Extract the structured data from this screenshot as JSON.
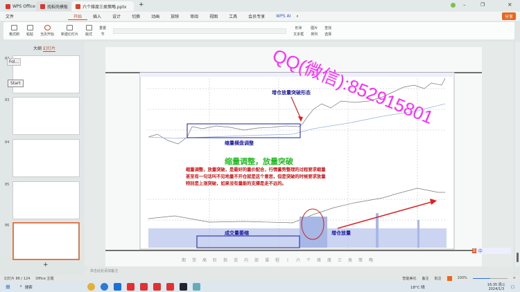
{
  "titlebar": {
    "tabs": [
      "WPS Office",
      "找稻壳模板",
      "六个维度三类策略.pptx"
    ],
    "new_tab": "+"
  },
  "menubar": {
    "file": "文件",
    "items": [
      "开始",
      "插入",
      "设计",
      "切换",
      "动画",
      "放映",
      "审阅",
      "视图",
      "工具",
      "会员专享"
    ],
    "ai": "WPS AI",
    "share": "分享"
  },
  "ribbon": {
    "format_painter": "格式刷",
    "paste": "粘贴",
    "play": "当页开始",
    "new_slide": "新建幻灯片",
    "layout": "版式",
    "reset": "重置",
    "section": "节",
    "shape": "形状",
    "picture": "图片",
    "textbox": "文本框",
    "arrange": "排列",
    "find": "查找",
    "select": "选择"
  },
  "panel": {
    "tab_outline": "大纲",
    "tab_slides": "幻灯片",
    "slides": [
      {
        "num": "82"
      },
      {
        "num": "83"
      },
      {
        "num": "84"
      },
      {
        "num": "85"
      },
      {
        "num": "86",
        "selected": true
      }
    ],
    "tooltip": "Fol...",
    "start": "Start",
    "add": "+"
  },
  "slide": {
    "watermark": "QQ(微信):852915801",
    "annot_breakout": "增仓放量突破形态",
    "annot_consolidation": "缩量横盘调整",
    "heading": "缩量调整，放量突破",
    "body": [
      "缩量调整，放量突破，是最好的量价配合，行情蓄势整理的过程要求缩量",
      "甚至有一句话叫不见地量不开仓就是这个意思，但是突破的时候要求放量",
      "特别是上涨突破，如果没有量能的支撑是走不远的。"
    ],
    "annot_volume_shrink": "成交量萎缩",
    "annot_volume_up": "增仓放量",
    "footer": "期货高阶指说内部课程丨六个维度三类策略"
  },
  "notes_placeholder": "单击此处添加备注",
  "status": {
    "slide_counter": "幻灯片 86 / 124",
    "theme": "Office 主题",
    "beautify": "智能美化",
    "notes": "备注",
    "comment": "批注",
    "zoom": "100%",
    "zoom_level": 0.5
  },
  "taskbar": {
    "search": "搜索",
    "weather": "18°C 晴",
    "time": "16:35 周三",
    "date": "2024/1/3"
  },
  "colors": {
    "accent": "#d24726",
    "watermark": "#ff2cff",
    "annot_blue": "#1a1aa0",
    "heading_green": "#22bb22",
    "body_red": "#cc1111"
  }
}
